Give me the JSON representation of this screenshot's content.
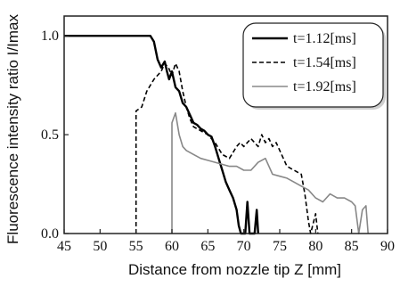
{
  "chart_data": {
    "type": "line",
    "xlabel": "Distance from nozzle tip  Z [mm]",
    "ylabel": "Fluorescence intensity ratio I/Imax",
    "xlim": [
      45,
      90
    ],
    "ylim": [
      0,
      1.1
    ],
    "x_ticks": [
      "45",
      "50",
      "55",
      "60",
      "65",
      "70",
      "75",
      "80",
      "85",
      "90"
    ],
    "y_ticks": [
      "0.0",
      "0.5",
      "1.0"
    ],
    "grid": false,
    "legend_position": "top-right",
    "series": [
      {
        "name": "t=1.12[ms]",
        "style": "solid",
        "color": "#000000",
        "points": [
          [
            45,
            1.0
          ],
          [
            57,
            1.0
          ],
          [
            57.5,
            0.97
          ],
          [
            58,
            0.88
          ],
          [
            58.5,
            0.84
          ],
          [
            59,
            0.87
          ],
          [
            59.3,
            0.82
          ],
          [
            59.6,
            0.78
          ],
          [
            60,
            0.82
          ],
          [
            60.5,
            0.74
          ],
          [
            61,
            0.72
          ],
          [
            61.5,
            0.66
          ],
          [
            62,
            0.64
          ],
          [
            62.5,
            0.6
          ],
          [
            63,
            0.56
          ],
          [
            63.5,
            0.55
          ],
          [
            64,
            0.53
          ],
          [
            64.5,
            0.52
          ],
          [
            65,
            0.5
          ],
          [
            65.5,
            0.49
          ],
          [
            66,
            0.44
          ],
          [
            66.5,
            0.38
          ],
          [
            67,
            0.32
          ],
          [
            67.5,
            0.26
          ],
          [
            68,
            0.22
          ],
          [
            68.5,
            0.18
          ],
          [
            69,
            0.12
          ],
          [
            69.3,
            0.04
          ],
          [
            69.6,
            0.0
          ],
          [
            70.2,
            0.0
          ],
          [
            70.5,
            0.16
          ],
          [
            70.8,
            0.0
          ],
          [
            71.5,
            0.0
          ],
          [
            71.8,
            0.12
          ],
          [
            72,
            0.0
          ]
        ]
      },
      {
        "name": "t=1.54[ms]",
        "style": "dashed",
        "color": "#000000",
        "points": [
          [
            55,
            0.0
          ],
          [
            55,
            0.62
          ],
          [
            55.8,
            0.64
          ],
          [
            56.5,
            0.72
          ],
          [
            57,
            0.75
          ],
          [
            57.5,
            0.78
          ],
          [
            58,
            0.8
          ],
          [
            58.5,
            0.82
          ],
          [
            59,
            0.86
          ],
          [
            59.5,
            0.84
          ],
          [
            60,
            0.8
          ],
          [
            60.5,
            0.86
          ],
          [
            61,
            0.82
          ],
          [
            61.5,
            0.72
          ],
          [
            62,
            0.64
          ],
          [
            62.5,
            0.58
          ],
          [
            63,
            0.54
          ],
          [
            64,
            0.52
          ],
          [
            65,
            0.5
          ],
          [
            66,
            0.46
          ],
          [
            67,
            0.4
          ],
          [
            68,
            0.38
          ],
          [
            69,
            0.44
          ],
          [
            69.5,
            0.46
          ],
          [
            70,
            0.44
          ],
          [
            71,
            0.48
          ],
          [
            72,
            0.44
          ],
          [
            72.5,
            0.5
          ],
          [
            73,
            0.46
          ],
          [
            73.5,
            0.48
          ],
          [
            74,
            0.44
          ],
          [
            74.5,
            0.46
          ],
          [
            75,
            0.42
          ],
          [
            76,
            0.34
          ],
          [
            77,
            0.32
          ],
          [
            78,
            0.3
          ],
          [
            78.5,
            0.2
          ],
          [
            79,
            0.06
          ],
          [
            79.3,
            0.0
          ],
          [
            80,
            0.1
          ],
          [
            80.3,
            0.0
          ]
        ]
      },
      {
        "name": "t=1.92[ms]",
        "style": "solid",
        "color": "#888888",
        "points": [
          [
            60,
            0.0
          ],
          [
            60,
            0.56
          ],
          [
            60.5,
            0.61
          ],
          [
            61,
            0.5
          ],
          [
            61.5,
            0.44
          ],
          [
            62,
            0.42
          ],
          [
            63,
            0.4
          ],
          [
            64,
            0.38
          ],
          [
            65,
            0.37
          ],
          [
            66,
            0.36
          ],
          [
            67,
            0.35
          ],
          [
            68,
            0.34
          ],
          [
            69,
            0.34
          ],
          [
            70,
            0.32
          ],
          [
            71,
            0.32
          ],
          [
            72,
            0.36
          ],
          [
            73,
            0.38
          ],
          [
            74,
            0.3
          ],
          [
            75,
            0.29
          ],
          [
            76,
            0.28
          ],
          [
            77,
            0.26
          ],
          [
            78,
            0.24
          ],
          [
            79,
            0.22
          ],
          [
            80,
            0.18
          ],
          [
            81,
            0.16
          ],
          [
            82,
            0.2
          ],
          [
            83,
            0.18
          ],
          [
            84,
            0.18
          ],
          [
            85,
            0.16
          ],
          [
            85.5,
            0.14
          ],
          [
            86,
            0.0
          ],
          [
            86.5,
            0.12
          ],
          [
            87,
            0.14
          ],
          [
            87.3,
            0.0
          ]
        ]
      }
    ]
  }
}
